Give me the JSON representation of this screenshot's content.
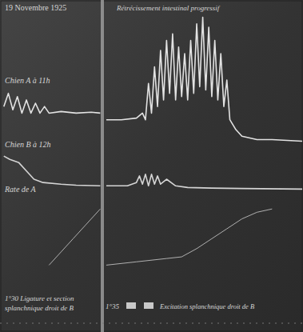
{
  "chart_data": {
    "type": "line",
    "title": "19 Novembre 1925",
    "subtitle": "Rétrécissement intestinal progressif",
    "annotations": [
      "1°30 Ligature et section",
      "splanchnique droit de B",
      "1°35",
      "Excitation splanchnique droit de B"
    ],
    "xlim": [
      0,
      100
    ],
    "ylim": [
      0,
      100
    ],
    "grid": false,
    "tick_labels": false,
    "series": [
      {
        "name": "Chien A à 11h",
        "color": "#e2e2e2",
        "line_style": "solid",
        "x": [
          1,
          2.5,
          4,
          5.5,
          7,
          8.5,
          10,
          11.5,
          13,
          14.5,
          16,
          20,
          25,
          30,
          33,
          34,
          35,
          40,
          45,
          47,
          48,
          49,
          50,
          51,
          52,
          53,
          54,
          55,
          56,
          57,
          58,
          59,
          60,
          61,
          62,
          63,
          64,
          65,
          66,
          67,
          68,
          69,
          70,
          71,
          72,
          73,
          74,
          75,
          76,
          78,
          80,
          85,
          90,
          100
        ],
        "values": [
          68,
          72,
          67,
          71,
          66,
          70,
          66,
          69,
          66,
          68,
          66,
          66.5,
          66,
          66.3,
          66,
          null,
          64,
          64,
          64.5,
          66,
          64,
          75,
          66,
          80,
          68,
          85,
          70,
          88,
          72,
          90,
          70,
          86,
          71,
          84,
          70,
          88,
          72,
          93,
          74,
          95,
          73,
          92,
          71,
          88,
          70,
          84,
          68,
          76,
          64,
          61,
          59,
          58,
          58,
          57.5
        ]
      },
      {
        "name": "Chien B à 12h",
        "color": "#d4d4d4",
        "line_style": "solid",
        "x": [
          1,
          3,
          6,
          9,
          11,
          14,
          20,
          25,
          33,
          34,
          35,
          42,
          45,
          46,
          47,
          48,
          49,
          50,
          51,
          52,
          53,
          55,
          58,
          62,
          70,
          80,
          100
        ],
        "values": [
          53,
          52,
          51,
          48,
          46,
          45,
          44.5,
          44.2,
          44,
          null,
          44,
          44,
          45,
          47,
          44.5,
          47.5,
          44,
          47.5,
          44.5,
          47,
          44.5,
          46,
          44,
          43.5,
          43.3,
          43.2,
          43
        ]
      },
      {
        "name": "Rate de A",
        "color": "#bdbdbd",
        "line_style": "solid",
        "x": [
          16,
          20,
          24,
          28,
          33,
          34,
          35,
          45,
          55,
          60,
          65,
          70,
          75,
          80,
          85,
          90
        ],
        "values": [
          20,
          24,
          28,
          32,
          37,
          null,
          20,
          21,
          22,
          22.5,
          25,
          28,
          31,
          34,
          36,
          37
        ]
      }
    ]
  }
}
